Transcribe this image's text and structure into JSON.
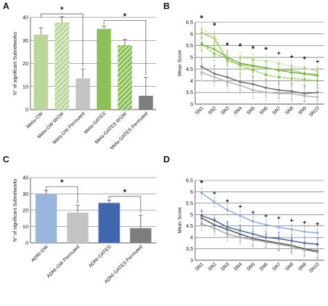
{
  "panels": {
    "A": "A",
    "B": "B",
    "C": "C",
    "D": "D"
  },
  "chart_data": [
    {
      "id": "A",
      "type": "bar",
      "ylabel": "N° of significant Subnetworks",
      "ylim": [
        0,
        40
      ],
      "yticks": [
        0,
        10,
        20,
        30,
        40
      ],
      "grid": true,
      "categories": [
        "Meta-GW",
        "Meta-GW WGW",
        "Meta-GW Permuted",
        "Meta-GATES",
        "Meta-GATES WGW",
        "Meta-GATES Permuted"
      ],
      "values": [
        32.5,
        37.8,
        13.5,
        35,
        28,
        6
      ],
      "errors": [
        3,
        2.5,
        4,
        1.2,
        2.5,
        8
      ],
      "colors": [
        "#bcd79a",
        "#bcd79a",
        "#c3c3c3",
        "#8cc155",
        "#8cc155",
        "#7d7d7d"
      ],
      "hatched": [
        false,
        true,
        false,
        false,
        true,
        false
      ],
      "significance": [
        {
          "from": 0,
          "to": 2,
          "label": "*"
        },
        {
          "from": 3,
          "to": 5,
          "label": "*"
        }
      ]
    },
    {
      "id": "B",
      "type": "line",
      "ylabel": "Mean Score",
      "ylim": [
        3,
        6.5
      ],
      "yticks": [
        3,
        3.5,
        4,
        4.5,
        5,
        5.5,
        6,
        6.5
      ],
      "grid": true,
      "categories": [
        "SN1",
        "SN2",
        "SN3",
        "SN4",
        "SN5",
        "SN6",
        "SN7",
        "SN8",
        "SN9",
        "SN10"
      ],
      "series": [
        {
          "values": [
            6.2,
            5.9,
            5.0,
            5.0,
            4.9,
            4.85,
            4.75,
            4.6,
            4.55,
            4.4
          ],
          "color": "#c8de9a",
          "dash": "3,2",
          "marker": "triangle",
          "error": 0.25
        },
        {
          "values": [
            6.05,
            5.8,
            4.85,
            4.7,
            4.6,
            4.55,
            4.45,
            4.45,
            4.3,
            4.2
          ],
          "color": "#a9cf75",
          "dash": "",
          "marker": "circle",
          "error": 0.25
        },
        {
          "values": [
            5.55,
            5.35,
            5.0,
            4.75,
            4.65,
            4.55,
            4.45,
            4.35,
            4.3,
            4.25
          ],
          "color": "#7ab648",
          "dash": "",
          "marker": "triangle",
          "error": 0.3
        },
        {
          "values": [
            5.6,
            5.15,
            4.95,
            4.65,
            4.45,
            4.25,
            4.15,
            4.1,
            4.05,
            4.0
          ],
          "color": "#8cc155",
          "dash": "3,2",
          "marker": "circle",
          "error": 0.3
        },
        {
          "values": [
            4.6,
            4.3,
            4.15,
            3.95,
            3.85,
            3.7,
            3.6,
            3.55,
            3.45,
            3.5
          ],
          "color": "#6e6e6e",
          "dash": "",
          "marker": "circle",
          "error": 0.35
        },
        {
          "values": [
            4.35,
            4.15,
            3.95,
            3.8,
            3.6,
            3.5,
            3.45,
            3.45,
            3.35,
            3.3
          ],
          "color": "#b5b5b5",
          "dash": "",
          "marker": "circle",
          "error": 0.35
        }
      ],
      "annotations": [
        "*",
        "*",
        "*",
        "*",
        "*",
        "*",
        "+",
        "+",
        "+",
        "+"
      ]
    },
    {
      "id": "C",
      "type": "bar",
      "ylabel": "N° of significant Subnetworks",
      "ylim": [
        0,
        40
      ],
      "yticks": [
        0,
        10,
        20,
        30,
        40
      ],
      "grid": true,
      "categories": [
        "ADNI-GW",
        "ADNI-GW Permuted",
        "ADNI-GATES",
        "ADNI-GATES Permuted"
      ],
      "values": [
        30,
        18.5,
        24.5,
        9
      ],
      "errors": [
        2,
        4.5,
        1.5,
        8
      ],
      "colors": [
        "#9ab6de",
        "#c3c3c3",
        "#3f67ae",
        "#7d7d7d"
      ],
      "hatched": [
        false,
        false,
        false,
        false
      ],
      "significance": [
        {
          "from": 0,
          "to": 1,
          "label": "*"
        },
        {
          "from": 2,
          "to": 3,
          "label": "*"
        }
      ]
    },
    {
      "id": "D",
      "type": "line",
      "ylabel": "Mean Score",
      "ylim": [
        3,
        6.5
      ],
      "yticks": [
        3,
        3.5,
        4,
        4.5,
        5,
        5.5,
        6,
        6.5
      ],
      "grid": true,
      "categories": [
        "SN1",
        "SN2",
        "SN3",
        "SN4",
        "SN5",
        "SN6",
        "SN7",
        "SN8",
        "SN9",
        "SN10"
      ],
      "series": [
        {
          "values": [
            5.95,
            5.55,
            5.2,
            4.95,
            4.7,
            4.55,
            4.45,
            4.35,
            4.25,
            4.2
          ],
          "color": "#8eaedb",
          "dash": "",
          "marker": "circle",
          "error": 0.22
        },
        {
          "values": [
            4.95,
            4.75,
            4.45,
            4.3,
            4.15,
            4.0,
            3.95,
            3.85,
            3.75,
            3.7
          ],
          "color": "#3f67ae",
          "dash": "",
          "marker": "circle",
          "error": 0.25
        },
        {
          "values": [
            4.85,
            4.55,
            4.35,
            4.15,
            3.95,
            3.85,
            3.75,
            3.65,
            3.5,
            3.4
          ],
          "color": "#555555",
          "dash": "",
          "marker": "triangle",
          "error": 0.3
        },
        {
          "values": [
            4.6,
            4.4,
            4.15,
            4.0,
            3.9,
            3.8,
            3.7,
            3.6,
            3.45,
            3.35
          ],
          "color": "#a8a8a8",
          "dash": "",
          "marker": "circle",
          "error": 0.3
        }
      ],
      "annotations": [
        "*",
        "+",
        "+",
        "+",
        "+",
        "+",
        "+",
        "+",
        "+",
        "+"
      ]
    }
  ]
}
